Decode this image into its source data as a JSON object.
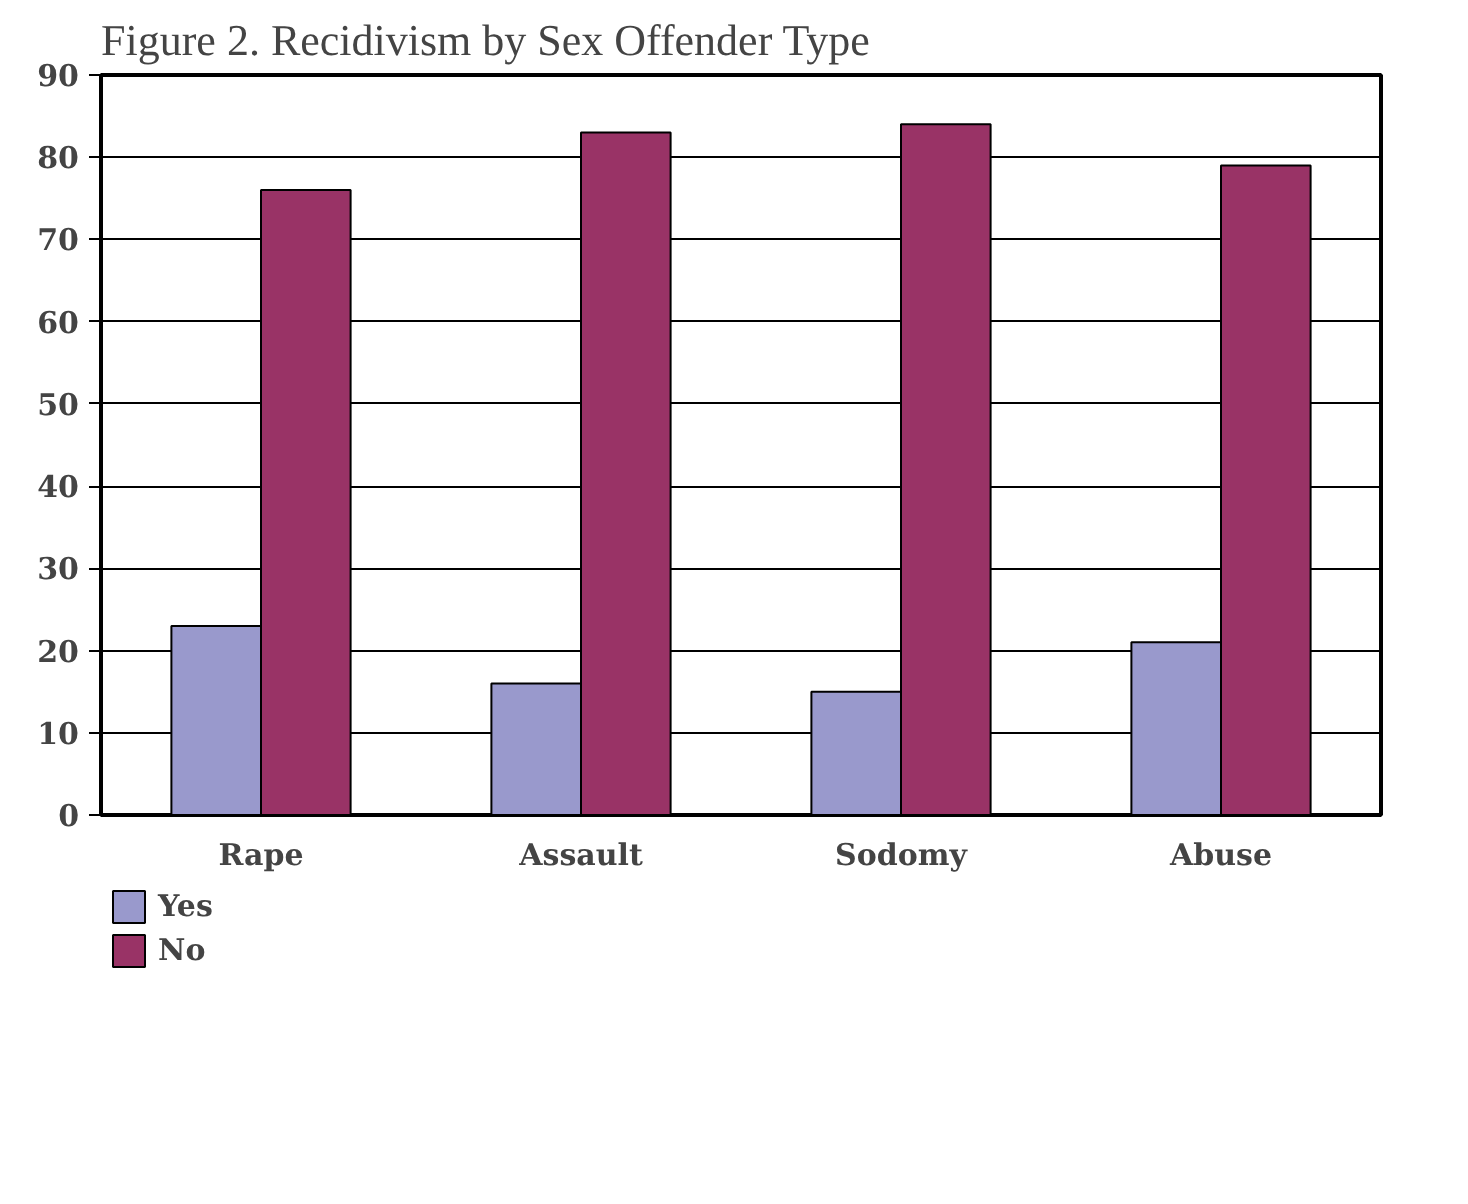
{
  "chart_data": {
    "type": "bar",
    "title": "Figure 2. Recidivism by Sex Offender Type",
    "categories": [
      "Rape",
      "Assault",
      "Sodomy",
      "Abuse"
    ],
    "series": [
      {
        "name": "Yes",
        "color": "#9999cc",
        "values": [
          23,
          16,
          15,
          21
        ]
      },
      {
        "name": "No",
        "color": "#993366",
        "values": [
          76,
          83,
          84,
          79
        ]
      }
    ],
    "ylim": [
      0,
      90
    ],
    "yticks": [
      0,
      10,
      20,
      30,
      40,
      50,
      60,
      70,
      80,
      90
    ],
    "grid": "y",
    "legend": "bottom left"
  }
}
